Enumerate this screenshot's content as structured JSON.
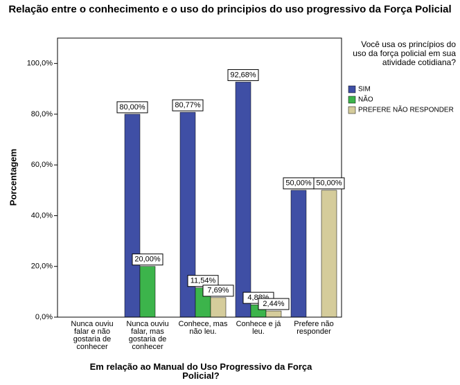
{
  "chart_data": {
    "type": "bar",
    "title": "Relação entre o conhecimento e o uso do principios do uso progressivo da Força Policial",
    "x_label": "Em relação ao Manual do Uso Progressivo da Força Policial?",
    "y_label": "Porcentagem",
    "legend_title": "Você usa os princípios do uso da força policial em sua atividade cotidiana?",
    "legend_position": "right",
    "categories": [
      "Nunca ouviu falar e não gostaria de conhecer",
      "Nunca ouviu falar, mas gostaria de conhecer",
      "Conhece, mas não leu.",
      "Conhece e já leu.",
      "Prefere não responder"
    ],
    "series": [
      {
        "name": "SIM",
        "color": "#3f4fa5",
        "values": [
          null,
          80,
          80.77,
          92.68,
          50
        ],
        "value_labels": [
          null,
          "80,00%",
          "80,77%",
          "92,68%",
          "50,00%"
        ]
      },
      {
        "name": "NÃO",
        "color": "#3cb44b",
        "values": [
          null,
          20,
          11.54,
          4.88,
          null
        ],
        "value_labels": [
          null,
          "20,00%",
          "11,54%",
          "4,88%",
          null
        ]
      },
      {
        "name": "PREFERE NÃO RESPONDER",
        "color": "#d5cc9b",
        "values": [
          null,
          null,
          7.69,
          2.44,
          50
        ],
        "value_labels": [
          null,
          null,
          "7,69%",
          "2,44%",
          "50,00%"
        ]
      }
    ],
    "ylim": [
      0,
      110
    ],
    "yticks": [
      {
        "value": 0,
        "label": "0,0%"
      },
      {
        "value": 20,
        "label": "20,0%"
      },
      {
        "value": 40,
        "label": "40,0%"
      },
      {
        "value": 60,
        "label": "60,0%"
      },
      {
        "value": 80,
        "label": "80,0%"
      },
      {
        "value": 100,
        "label": "100,0%"
      }
    ]
  }
}
